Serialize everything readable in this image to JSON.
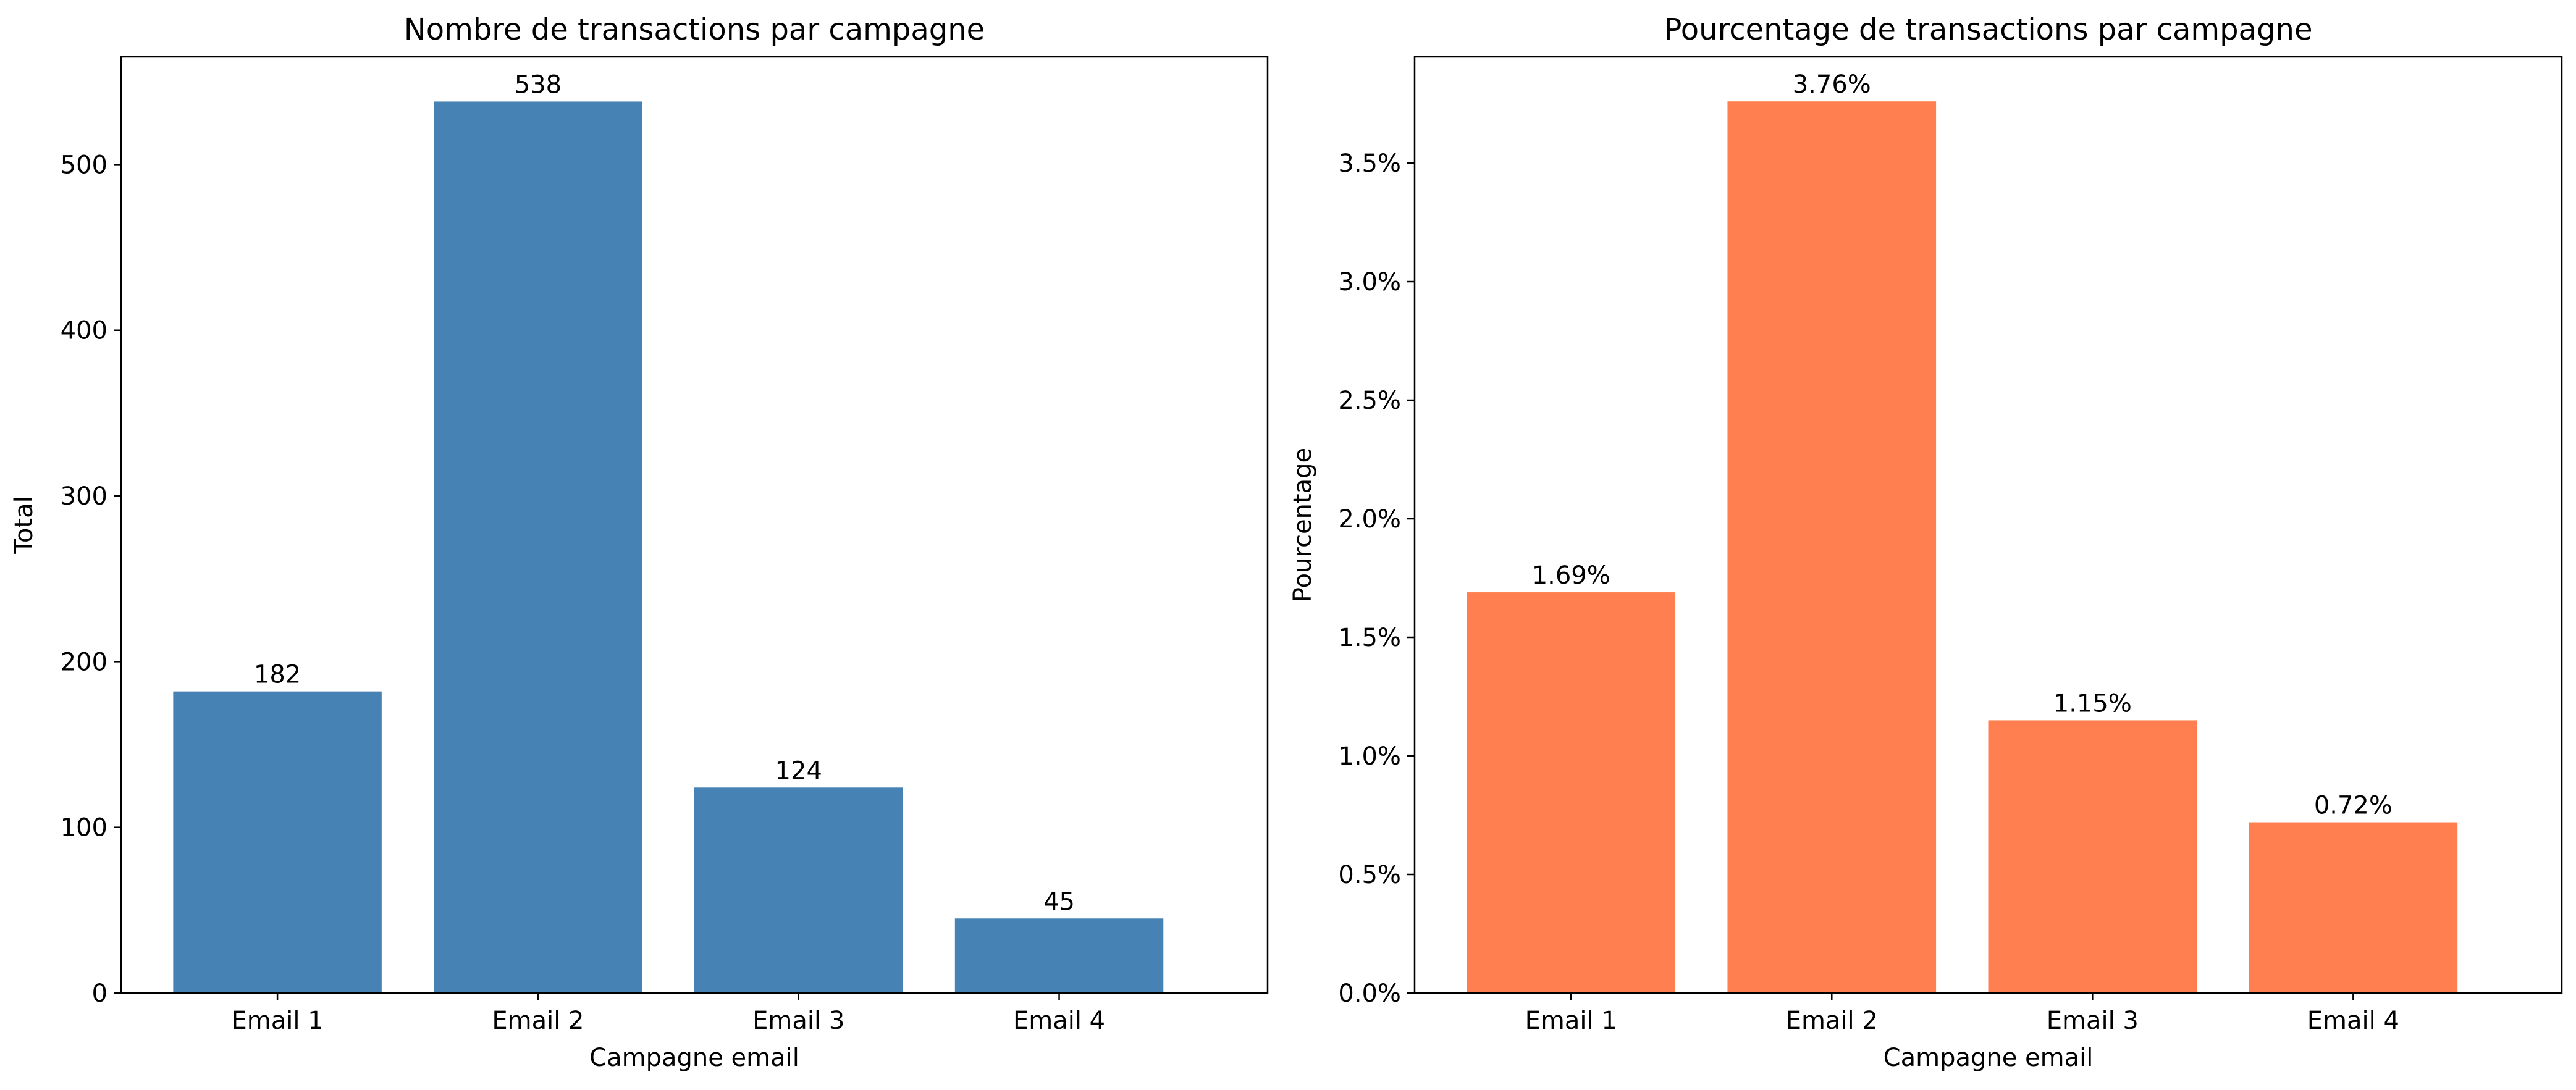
{
  "chart_data": [
    {
      "type": "bar",
      "title": "Nombre de transactions par campagne",
      "xlabel": "Campagne email",
      "ylabel": "Total",
      "categories": [
        "Email 1",
        "Email 2",
        "Email 3",
        "Email 4"
      ],
      "values": [
        182,
        538,
        124,
        45
      ],
      "value_labels": [
        "182",
        "538",
        "124",
        "45"
      ],
      "ylim": [
        0,
        565
      ],
      "yticks": [
        0,
        100,
        200,
        300,
        400,
        500
      ],
      "ytick_labels": [
        "0",
        "100",
        "200",
        "300",
        "400",
        "500"
      ],
      "grid": false,
      "color": "#4682b4"
    },
    {
      "type": "bar",
      "title": "Pourcentage de transactions par campagne",
      "xlabel": "Campagne email",
      "ylabel": "Pourcentage",
      "categories": [
        "Email 1",
        "Email 2",
        "Email 3",
        "Email 4"
      ],
      "values": [
        1.69,
        3.76,
        1.15,
        0.72
      ],
      "value_labels": [
        "1.69%",
        "3.76%",
        "1.15%",
        "0.72%"
      ],
      "ylim": [
        0,
        3.948
      ],
      "yticks": [
        0,
        0.5,
        1.0,
        1.5,
        2.0,
        2.5,
        3.0,
        3.5
      ],
      "ytick_labels": [
        "0.0%",
        "0.5%",
        "1.0%",
        "1.5%",
        "2.0%",
        "2.5%",
        "3.0%",
        "3.5%"
      ],
      "grid": false,
      "color": "#ff7f50"
    }
  ]
}
